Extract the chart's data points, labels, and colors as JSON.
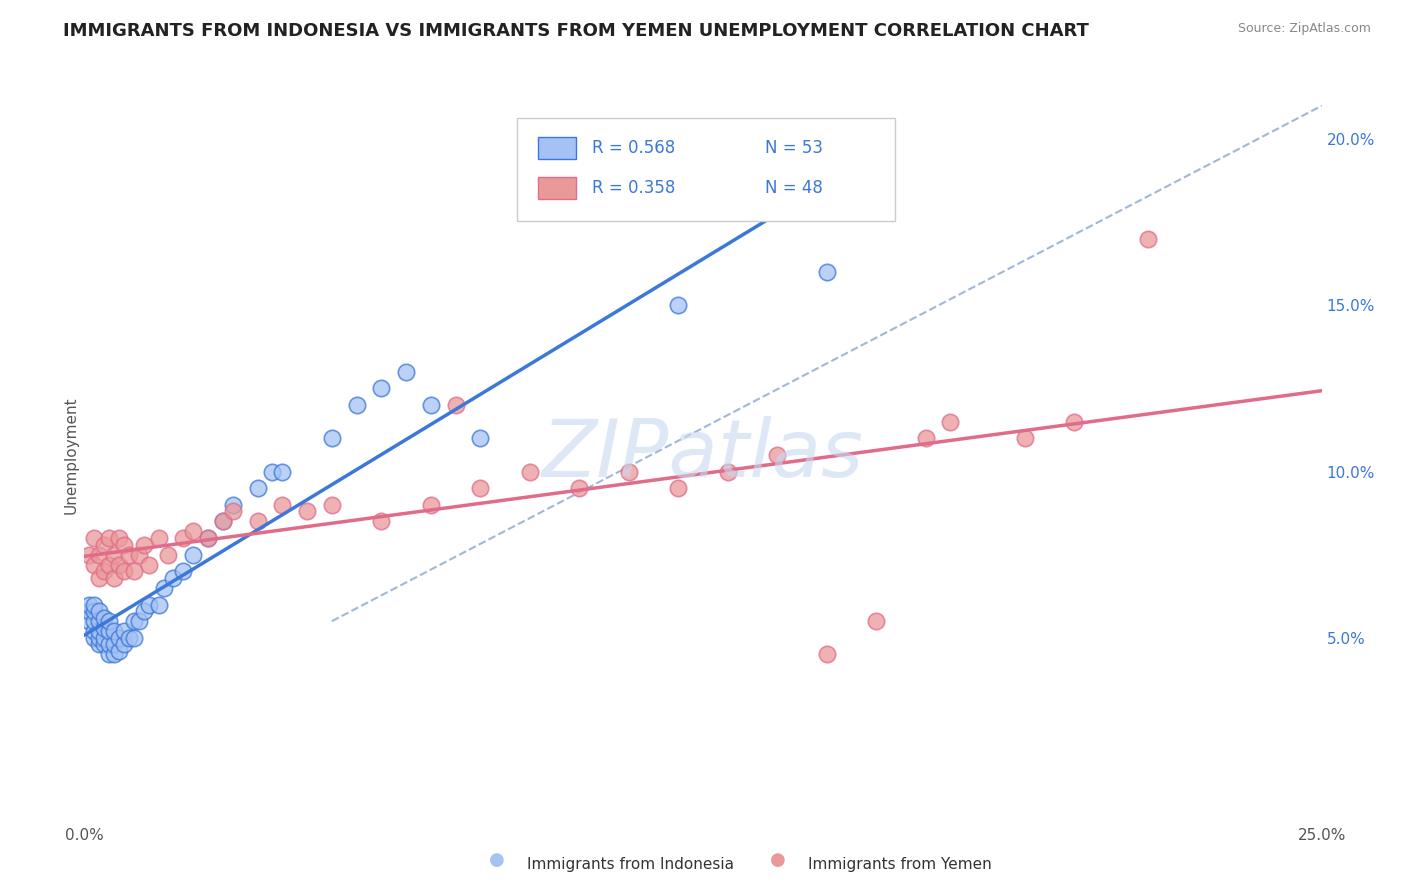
{
  "title": "IMMIGRANTS FROM INDONESIA VS IMMIGRANTS FROM YEMEN UNEMPLOYMENT CORRELATION CHART",
  "source": "Source: ZipAtlas.com",
  "ylabel": "Unemployment",
  "xlim": [
    0.0,
    0.25
  ],
  "ylim": [
    -0.005,
    0.215
  ],
  "yticks_right": [
    0.05,
    0.1,
    0.15,
    0.2
  ],
  "ytick_labels_right": [
    "5.0%",
    "10.0%",
    "15.0%",
    "20.0%"
  ],
  "r_indonesia": 0.568,
  "n_indonesia": 53,
  "r_yemen": 0.358,
  "n_yemen": 48,
  "color_indonesia": "#a4c2f4",
  "color_yemen": "#ea9999",
  "color_indonesia_line": "#3c78d8",
  "color_yemen_line": "#e06c8a",
  "color_dashed": "#a0b8d8",
  "background_color": "#ffffff",
  "grid_color": "#dddddd",
  "watermark_color": "#c8d8f0",
  "title_fontsize": 13,
  "axis_label_fontsize": 11,
  "indonesia_x": [
    0.001,
    0.001,
    0.001,
    0.002,
    0.002,
    0.002,
    0.002,
    0.002,
    0.003,
    0.003,
    0.003,
    0.003,
    0.003,
    0.004,
    0.004,
    0.004,
    0.004,
    0.005,
    0.005,
    0.005,
    0.005,
    0.006,
    0.006,
    0.006,
    0.007,
    0.007,
    0.008,
    0.008,
    0.009,
    0.01,
    0.01,
    0.011,
    0.012,
    0.013,
    0.015,
    0.016,
    0.018,
    0.02,
    0.022,
    0.025,
    0.028,
    0.03,
    0.035,
    0.038,
    0.04,
    0.05,
    0.055,
    0.06,
    0.065,
    0.07,
    0.08,
    0.12,
    0.15
  ],
  "indonesia_y": [
    0.055,
    0.058,
    0.06,
    0.05,
    0.052,
    0.055,
    0.058,
    0.06,
    0.048,
    0.05,
    0.052,
    0.055,
    0.058,
    0.048,
    0.05,
    0.053,
    0.056,
    0.045,
    0.048,
    0.052,
    0.055,
    0.045,
    0.048,
    0.052,
    0.046,
    0.05,
    0.048,
    0.052,
    0.05,
    0.05,
    0.055,
    0.055,
    0.058,
    0.06,
    0.06,
    0.065,
    0.068,
    0.07,
    0.075,
    0.08,
    0.085,
    0.09,
    0.095,
    0.1,
    0.1,
    0.11,
    0.12,
    0.125,
    0.13,
    0.12,
    0.11,
    0.15,
    0.16
  ],
  "yemen_x": [
    0.001,
    0.002,
    0.002,
    0.003,
    0.003,
    0.004,
    0.004,
    0.005,
    0.005,
    0.006,
    0.006,
    0.007,
    0.007,
    0.008,
    0.008,
    0.009,
    0.01,
    0.011,
    0.012,
    0.013,
    0.015,
    0.017,
    0.02,
    0.022,
    0.025,
    0.028,
    0.03,
    0.035,
    0.04,
    0.045,
    0.05,
    0.06,
    0.07,
    0.075,
    0.08,
    0.09,
    0.1,
    0.11,
    0.12,
    0.13,
    0.14,
    0.15,
    0.16,
    0.17,
    0.175,
    0.19,
    0.2,
    0.215
  ],
  "yemen_y": [
    0.075,
    0.072,
    0.08,
    0.068,
    0.075,
    0.07,
    0.078,
    0.072,
    0.08,
    0.068,
    0.075,
    0.072,
    0.08,
    0.07,
    0.078,
    0.075,
    0.07,
    0.075,
    0.078,
    0.072,
    0.08,
    0.075,
    0.08,
    0.082,
    0.08,
    0.085,
    0.088,
    0.085,
    0.09,
    0.088,
    0.09,
    0.085,
    0.09,
    0.12,
    0.095,
    0.1,
    0.095,
    0.1,
    0.095,
    0.1,
    0.105,
    0.045,
    0.055,
    0.11,
    0.115,
    0.11,
    0.115,
    0.17
  ]
}
